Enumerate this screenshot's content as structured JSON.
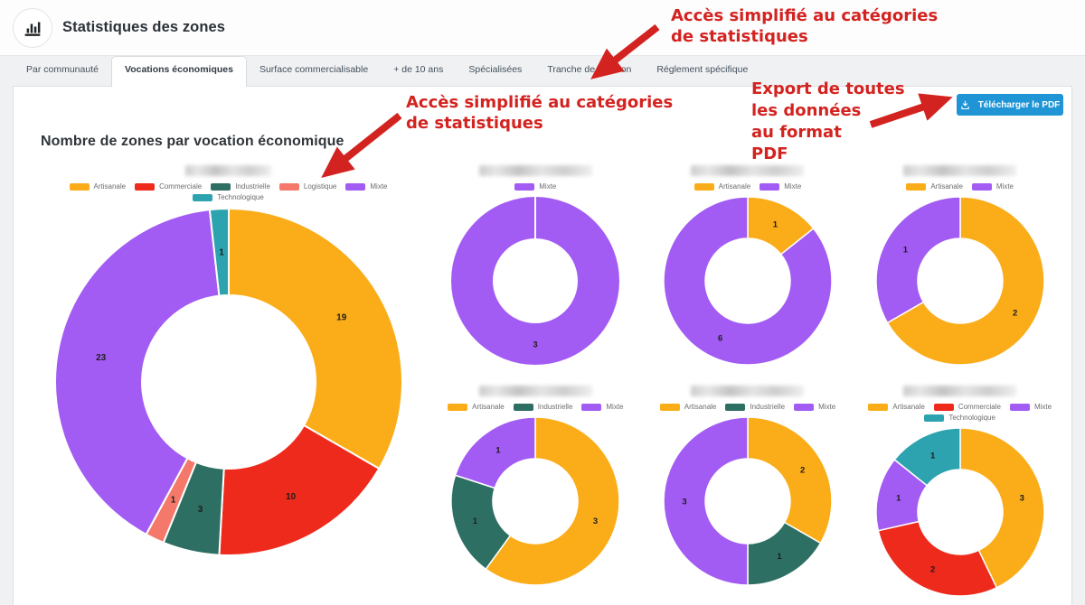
{
  "header": {
    "title": "Statistiques des zones"
  },
  "tabs": [
    {
      "label": "Par communauté",
      "active": false
    },
    {
      "label": "Vocations économiques",
      "active": true
    },
    {
      "label": "Surface commercialisable",
      "active": false
    },
    {
      "label": "+ de 10 ans",
      "active": false
    },
    {
      "label": "Spécialisées",
      "active": false
    },
    {
      "label": "Tranche de création",
      "active": false
    },
    {
      "label": "Réglement spécifique",
      "active": false
    }
  ],
  "toolbar": {
    "download_button": "Télécharger le PDF"
  },
  "section": {
    "title": "Nombre de zones par vocation économique"
  },
  "annotations": [
    {
      "text": "Accès simplifié au catégories\nde statistiques"
    },
    {
      "text": "Accès simplifié au catégories\nde statistiques"
    },
    {
      "text": "Export de toutes\nles données\nau format\nPDF"
    }
  ],
  "colors": {
    "Artisanale": "#fbad19",
    "Commerciale": "#ee2a1c",
    "Industrielle": "#2e6f63",
    "Logistique": "#f5796a",
    "Mixte": "#a35cf3",
    "Technologique": "#2ca3af"
  },
  "ui_colors": {
    "button_blue": "#2095d6",
    "annotation_red": "#d32320",
    "page_background": "#f0f1f3",
    "card_background": "#ffffff"
  },
  "chart_data": [
    {
      "type": "donut",
      "size": "large",
      "title_redacted": true,
      "legend": [
        "Artisanale",
        "Commerciale",
        "Industrielle",
        "Logistique",
        "Mixte",
        "Technologique"
      ],
      "slices": [
        {
          "label": "Artisanale",
          "value": 19
        },
        {
          "label": "Commerciale",
          "value": 10
        },
        {
          "label": "Industrielle",
          "value": 3
        },
        {
          "label": "Logistique",
          "value": 1
        },
        {
          "label": "Mixte",
          "value": 23
        },
        {
          "label": "Technologique",
          "value": 1
        }
      ]
    },
    {
      "type": "donut",
      "size": "small",
      "title_redacted": true,
      "legend": [
        "Mixte"
      ],
      "slices": [
        {
          "label": "Mixte",
          "value": 3
        }
      ]
    },
    {
      "type": "donut",
      "size": "small",
      "title_redacted": true,
      "legend": [
        "Artisanale",
        "Mixte"
      ],
      "slices": [
        {
          "label": "Artisanale",
          "value": 1
        },
        {
          "label": "Mixte",
          "value": 6
        }
      ]
    },
    {
      "type": "donut",
      "size": "small",
      "title_redacted": true,
      "legend": [
        "Artisanale",
        "Mixte"
      ],
      "slices": [
        {
          "label": "Artisanale",
          "value": 2
        },
        {
          "label": "Mixte",
          "value": 1
        }
      ]
    },
    {
      "type": "donut",
      "size": "small",
      "title_redacted": true,
      "legend": [
        "Artisanale",
        "Industrielle",
        "Mixte"
      ],
      "slices": [
        {
          "label": "Artisanale",
          "value": 3
        },
        {
          "label": "Industrielle",
          "value": 1
        },
        {
          "label": "Mixte",
          "value": 1
        }
      ]
    },
    {
      "type": "donut",
      "size": "small",
      "title_redacted": true,
      "legend": [
        "Artisanale",
        "Industrielle",
        "Mixte"
      ],
      "slices": [
        {
          "label": "Artisanale",
          "value": 2
        },
        {
          "label": "Industrielle",
          "value": 1
        },
        {
          "label": "Mixte",
          "value": 3
        }
      ]
    },
    {
      "type": "donut",
      "size": "small",
      "title_redacted": true,
      "legend": [
        "Artisanale",
        "Commerciale",
        "Mixte",
        "Technologique"
      ],
      "slices": [
        {
          "label": "Artisanale",
          "value": 3
        },
        {
          "label": "Commerciale",
          "value": 2
        },
        {
          "label": "Mixte",
          "value": 1
        },
        {
          "label": "Technologique",
          "value": 1
        }
      ]
    }
  ]
}
